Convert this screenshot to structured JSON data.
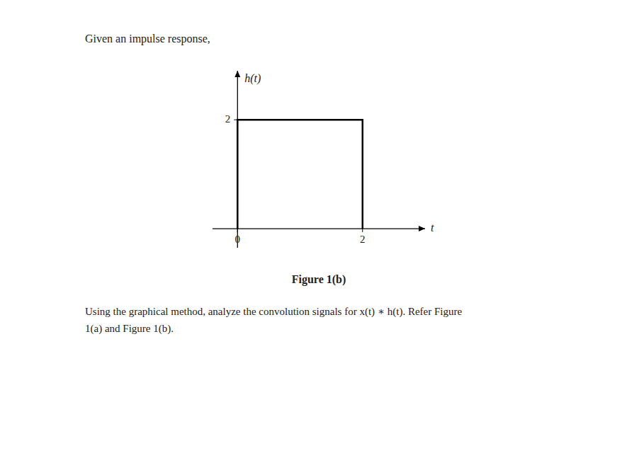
{
  "chart_data": {
    "type": "line",
    "title": "Figure 1(b)",
    "subtitle": "Given an impulse response,",
    "annotations": [
      "Using the graphical method, analyze the convolution signals for x(t) ∗ h(t). Refer Figure",
      "1(a) and Figure 1(b)."
    ],
    "x_label": "t",
    "y_label": "h(t)",
    "x": [
      0,
      0,
      2,
      2
    ],
    "values": [
      0,
      2,
      2,
      0
    ],
    "color": "#000000",
    "xlim": [
      -0.4,
      3.0
    ],
    "ylim": [
      -0.35,
      2.9
    ],
    "xticks": [
      0,
      2
    ],
    "yticks": [
      2
    ],
    "grid": false
  }
}
